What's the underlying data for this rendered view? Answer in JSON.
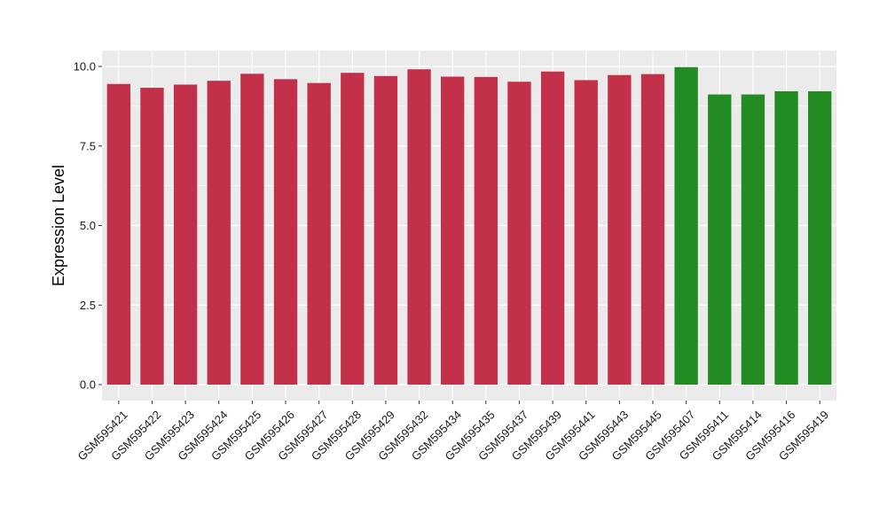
{
  "chart_data": {
    "type": "bar",
    "title": "",
    "xlabel": "",
    "ylabel": "Expression Level",
    "ylim": [
      0,
      10.5
    ],
    "yticks": [
      0.0,
      2.5,
      5.0,
      7.5,
      10.0
    ],
    "ytick_labels": [
      "0.0",
      "2.5",
      "5.0",
      "7.5",
      "10.0"
    ],
    "grid": true,
    "legend": "none",
    "categories": [
      "GSM595421",
      "GSM595422",
      "GSM595423",
      "GSM595424",
      "GSM595425",
      "GSM595426",
      "GSM595427",
      "GSM595428",
      "GSM595429",
      "GSM595432",
      "GSM595434",
      "GSM595435",
      "GSM595437",
      "GSM595439",
      "GSM595441",
      "GSM595443",
      "GSM595445",
      "GSM595407",
      "GSM595411",
      "GSM595414",
      "GSM595416",
      "GSM595419"
    ],
    "values": [
      9.45,
      9.33,
      9.43,
      9.55,
      9.77,
      9.6,
      9.48,
      9.8,
      9.7,
      9.91,
      9.68,
      9.67,
      9.52,
      9.84,
      9.57,
      9.73,
      9.76,
      9.98,
      9.12,
      9.12,
      9.22,
      9.22
    ],
    "groups": [
      "a",
      "a",
      "a",
      "a",
      "a",
      "a",
      "a",
      "a",
      "a",
      "a",
      "a",
      "a",
      "a",
      "a",
      "a",
      "a",
      "a",
      "b",
      "b",
      "b",
      "b",
      "b"
    ],
    "colors": {
      "a": "#c3304a",
      "b": "#228b22",
      "panel": "#ebebeb",
      "grid": "#ffffff"
    }
  }
}
